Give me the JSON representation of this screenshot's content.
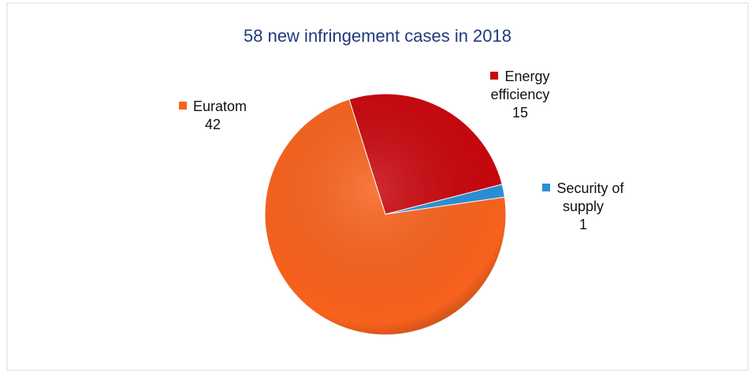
{
  "chart_data": {
    "type": "pie",
    "title": "58 new infringement cases in 2018",
    "categories": [
      "Energy efficiency",
      "Security of supply",
      "Euratom"
    ],
    "values": [
      15,
      1,
      42
    ],
    "colors": [
      "#c8070e",
      "#2a8fd6",
      "#f7621d"
    ]
  }
}
